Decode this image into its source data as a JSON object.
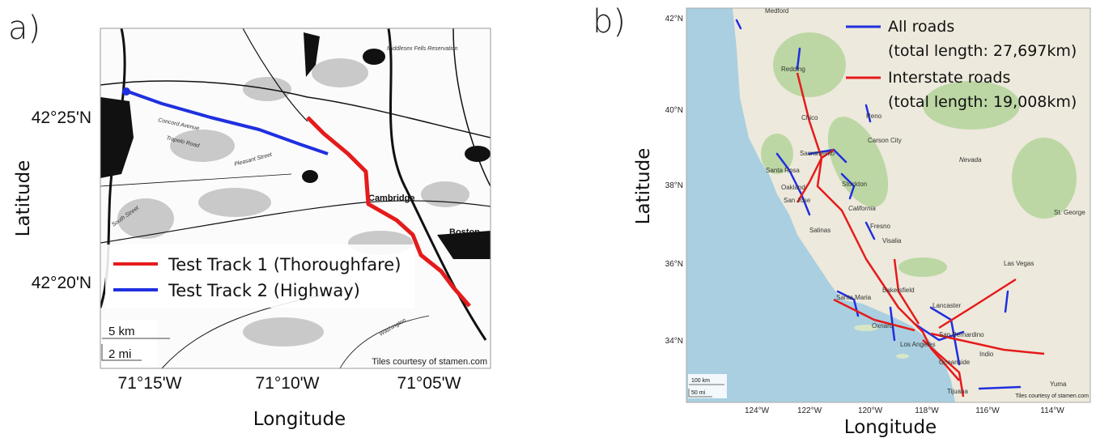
{
  "panels": [
    {
      "label": "a)",
      "y_axis_title": "Latitude",
      "x_axis_title": "Longitude",
      "y_tick_labels": [
        "42°25'N",
        "42°20'N"
      ],
      "x_tick_labels": [
        "71°15'W",
        "71°10'W",
        "71°05'W"
      ],
      "legend": [
        "Test Track 1 (Thoroughfare)",
        "Test Track 2 (Highway)"
      ],
      "scale": [
        "5 km",
        "2 mi"
      ],
      "attribution": "Tiles courtesy of stamen.com",
      "places": [
        "Cambridge",
        "Boston",
        "Middlesex Fells Reservation",
        "Concord Avenue",
        "Trapelo Road",
        "Pleasant Street",
        "South Street",
        "Washington"
      ]
    },
    {
      "label": "b)",
      "y_axis_title": "Latitude",
      "x_axis_title": "Longitude",
      "y_tick_labels": [
        "42°N",
        "40°N",
        "38°N",
        "36°N",
        "34°N"
      ],
      "x_tick_labels": [
        "124°W",
        "122°W",
        "120°W",
        "118°W",
        "116°W",
        "114°W"
      ],
      "legend": [
        {
          "name": "All roads",
          "detail": "(total length: 27,697km)"
        },
        {
          "name": "Interstate roads",
          "detail": "(total length: 19,008km)"
        }
      ],
      "scale": [
        "100 km",
        "50 mi"
      ],
      "attribution": "Tiles courtesy of stamen.com",
      "places": [
        "Medford",
        "Redding",
        "Chico",
        "Reno",
        "Carson City",
        "Sacramento",
        "Santa Rosa",
        "Oakland",
        "San Jose",
        "Stockton",
        "California",
        "Nevada",
        "Fresno",
        "Visalia",
        "Salinas",
        "Las Vegas",
        "St. George",
        "Bakersfield",
        "Santa Maria",
        "Lancaster",
        "Oxnard",
        "Los Angeles",
        "San Bernardino",
        "Indio",
        "Oceanside",
        "Tijuana",
        "Yuma"
      ]
    }
  ]
}
